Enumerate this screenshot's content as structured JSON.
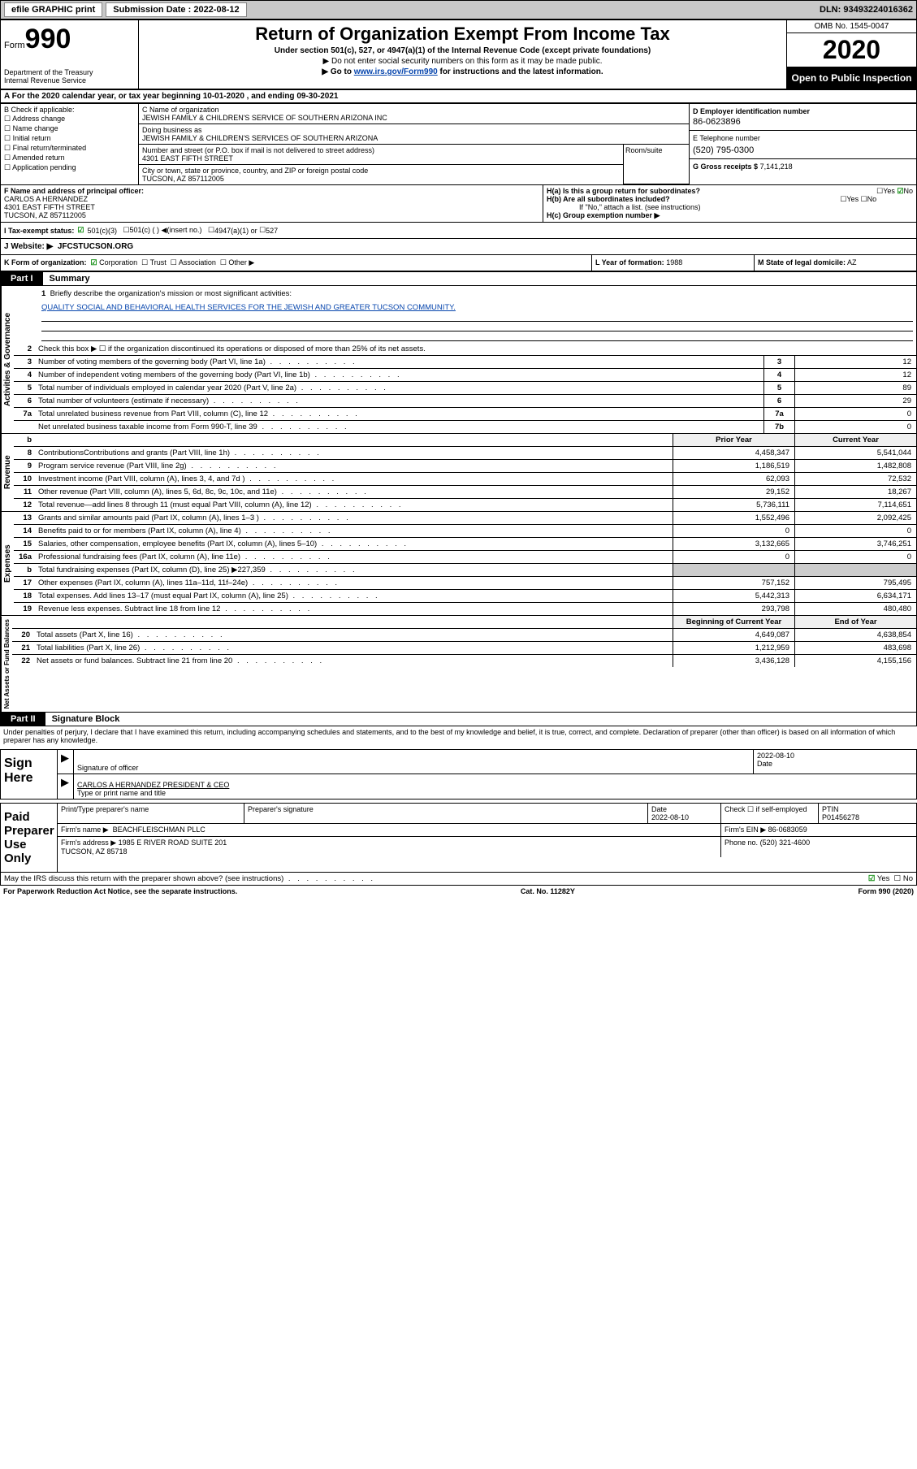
{
  "topbar": {
    "efile": "efile GRAPHIC print",
    "sub_label": "Submission Date :",
    "sub_date": "2022-08-12",
    "dln": "DLN: 93493224016362"
  },
  "header": {
    "form_label": "Form",
    "form_num": "990",
    "dept": "Department of the Treasury\nInternal Revenue Service",
    "title": "Return of Organization Exempt From Income Tax",
    "subtitle": "Under section 501(c), 527, or 4947(a)(1) of the Internal Revenue Code (except private foundations)",
    "note1": "▶ Do not enter social security numbers on this form as it may be made public.",
    "note2_pre": "▶ Go to ",
    "note2_link": "www.irs.gov/Form990",
    "note2_post": " for instructions and the latest information.",
    "omb": "OMB No. 1545-0047",
    "year": "2020",
    "inspect": "Open to Public Inspection"
  },
  "section_a": "A   For the 2020 calendar year, or tax year beginning 10-01-2020     , and ending 09-30-2021",
  "col_b": {
    "title": "B Check if applicable:",
    "items": [
      "Address change",
      "Name change",
      "Initial return",
      "Final return/terminated",
      "Amended return",
      "Application pending"
    ]
  },
  "col_c": {
    "name_label": "C Name of organization",
    "name": "JEWISH FAMILY & CHILDREN'S SERVICE OF SOUTHERN ARIZONA INC",
    "dba_label": "Doing business as",
    "dba": "JEWISH FAMILY & CHILDREN'S SERVICES OF SOUTHERN ARIZONA",
    "street_label": "Number and street (or P.O. box if mail is not delivered to street address)",
    "street": "4301 EAST FIFTH STREET",
    "room_label": "Room/suite",
    "city_label": "City or town, state or province, country, and ZIP or foreign postal code",
    "city": "TUCSON, AZ  857112005"
  },
  "col_d": {
    "ein_label": "D Employer identification number",
    "ein": "86-0623896",
    "phone_label": "E Telephone number",
    "phone": "(520) 795-0300",
    "gross_label": "G Gross receipts $",
    "gross": "7,141,218"
  },
  "officer": {
    "label": "F  Name and address of principal officer:",
    "name": "CARLOS A HERNANDEZ",
    "addr1": "4301 EAST FIFTH STREET",
    "addr2": "TUCSON, AZ  857112005",
    "ha": "H(a)  Is this a group return for subordinates?",
    "hb": "H(b)  Are all subordinates included?",
    "hb_note": "If \"No,\" attach a list. (see instructions)",
    "hc": "H(c)  Group exemption number ▶"
  },
  "tax_status": {
    "label": "I    Tax-exempt status:",
    "opt1": "501(c)(3)",
    "opt2": "501(c) (  ) ◀(insert no.)",
    "opt3": "4947(a)(1) or",
    "opt4": "527"
  },
  "website": {
    "label": "J    Website: ▶",
    "value": "JFCSTUCSON.ORG"
  },
  "k_row": {
    "k": "K Form of organization:",
    "corp": "Corporation",
    "trust": "Trust",
    "assoc": "Association",
    "other": "Other ▶",
    "l": "L Year of formation:",
    "l_val": "1988",
    "m": "M State of legal domicile:",
    "m_val": "AZ"
  },
  "part1": {
    "header": "Part I",
    "title": "Summary",
    "briefly_num": "1",
    "briefly": "Briefly describe the organization's mission or most significant activities:",
    "mission": "QUALITY SOCIAL AND BEHAVIORAL HEALTH SERVICES FOR THE JEWISH AND GREATER TUCSON COMMUNITY.",
    "line2": "Check this box ▶ ☐  if the organization discontinued its operations or disposed of more than 25% of its net assets.",
    "gov_label": "Activities & Governance",
    "rev_label": "Revenue",
    "exp_label": "Expenses",
    "net_label": "Net Assets or Fund Balances",
    "lines_gov": [
      {
        "n": "3",
        "t": "Number of voting members of the governing body (Part VI, line 1a)",
        "c": "3",
        "v": "12"
      },
      {
        "n": "4",
        "t": "Number of independent voting members of the governing body (Part VI, line 1b)",
        "c": "4",
        "v": "12"
      },
      {
        "n": "5",
        "t": "Total number of individuals employed in calendar year 2020 (Part V, line 2a)",
        "c": "5",
        "v": "89"
      },
      {
        "n": "6",
        "t": "Total number of volunteers (estimate if necessary)",
        "c": "6",
        "v": "29"
      },
      {
        "n": "7a",
        "t": "Total unrelated business revenue from Part VIII, column (C), line 12",
        "c": "7a",
        "v": "0"
      },
      {
        "n": "",
        "t": "Net unrelated business taxable income from Form 990-T, line 39",
        "c": "7b",
        "v": "0"
      }
    ],
    "prior_hdr": "Prior Year",
    "curr_hdr": "Current Year",
    "lines_rev": [
      {
        "n": "8",
        "t": "Contributions真Contributions and grants (Part VIII, line 1h)",
        "p": "4,458,347",
        "c": "5,541,044"
      },
      {
        "n": "9",
        "t": "Program service revenue (Part VIII, line 2g)",
        "p": "1,186,519",
        "c": "1,482,808"
      },
      {
        "n": "10",
        "t": "Investment income (Part VIII, column (A), lines 3, 4, and 7d )",
        "p": "62,093",
        "c": "72,532"
      },
      {
        "n": "11",
        "t": "Other revenue (Part VIII, column (A), lines 5, 6d, 8c, 9c, 10c, and 11e)",
        "p": "29,152",
        "c": "18,267"
      },
      {
        "n": "12",
        "t": "Total revenue—add lines 8 through 11 (must equal Part VIII, column (A), line 12)",
        "p": "5,736,111",
        "c": "7,114,651"
      }
    ],
    "lines_exp": [
      {
        "n": "13",
        "t": "Grants and similar amounts paid (Part IX, column (A), lines 1–3 )",
        "p": "1,552,496",
        "c": "2,092,425"
      },
      {
        "n": "14",
        "t": "Benefits paid to or for members (Part IX, column (A), line 4)",
        "p": "0",
        "c": "0"
      },
      {
        "n": "15",
        "t": "Salaries, other compensation, employee benefits (Part IX, column (A), lines 5–10)",
        "p": "3,132,665",
        "c": "3,746,251"
      },
      {
        "n": "16a",
        "t": "Professional fundraising fees (Part IX, column (A), line 11e)",
        "p": "0",
        "c": "0"
      },
      {
        "n": "b",
        "t": "Total fundraising expenses (Part IX, column (D), line 25) ▶227,359",
        "p": "",
        "c": ""
      },
      {
        "n": "17",
        "t": "Other expenses (Part IX, column (A), lines 11a–11d, 11f–24e)",
        "p": "757,152",
        "c": "795,495"
      },
      {
        "n": "18",
        "t": "Total expenses. Add lines 13–17 (must equal Part IX, column (A), line 25)",
        "p": "5,442,313",
        "c": "6,634,171"
      },
      {
        "n": "19",
        "t": "Revenue less expenses. Subtract line 18 from line 12",
        "p": "293,798",
        "c": "480,480"
      }
    ],
    "beg_hdr": "Beginning of Current Year",
    "end_hdr": "End of Year",
    "lines_net": [
      {
        "n": "20",
        "t": "Total assets (Part X, line 16)",
        "p": "4,649,087",
        "c": "4,638,854"
      },
      {
        "n": "21",
        "t": "Total liabilities (Part X, line 26)",
        "p": "1,212,959",
        "c": "483,698"
      },
      {
        "n": "22",
        "t": "Net assets or fund balances. Subtract line 21 from line 20",
        "p": "3,436,128",
        "c": "4,155,156"
      }
    ]
  },
  "part2": {
    "header": "Part II",
    "title": "Signature Block",
    "decl": "Under penalties of perjury, I declare that I have examined this return, including accompanying schedules and statements, and to the best of my knowledge and belief, it is true, correct, and complete. Declaration of preparer (other than officer) is based on all information of which preparer has any knowledge.",
    "sign_here": "Sign Here",
    "sig_officer": "Signature of officer",
    "sig_date": "2022-08-10",
    "sig_date_label": "Date",
    "officer_name": "CARLOS A HERNANDEZ  PRESIDENT & CEO",
    "type_name": "Type or print name and title",
    "paid": "Paid Preparer Use Only",
    "prep_name_label": "Print/Type preparer's name",
    "prep_sig_label": "Preparer's signature",
    "prep_date_label": "Date",
    "prep_date": "2022-08-10",
    "check_self": "Check ☐ if self-employed",
    "ptin_label": "PTIN",
    "ptin": "P01456278",
    "firm_name_label": "Firm's name     ▶",
    "firm_name": "BEACHFLEISCHMAN PLLC",
    "firm_ein_label": "Firm's EIN ▶",
    "firm_ein": "86-0683059",
    "firm_addr_label": "Firm's address ▶",
    "firm_addr": "1985 E RIVER ROAD SUITE 201\nTUCSON, AZ  85718",
    "firm_phone_label": "Phone no.",
    "firm_phone": "(520) 321-4600",
    "discuss": "May the IRS discuss this return with the preparer shown above? (see instructions)",
    "yes": "Yes",
    "no": "No"
  },
  "footer": {
    "left": "For Paperwork Reduction Act Notice, see the separate instructions.",
    "mid": "Cat. No. 11282Y",
    "right": "Form 990 (2020)"
  }
}
